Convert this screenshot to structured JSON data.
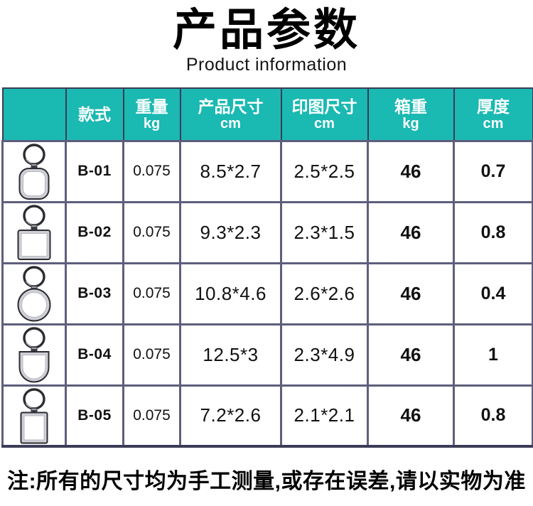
{
  "page": {
    "title": "产品参数",
    "subtitle": "Product information",
    "footnote": "注:所有的尺寸均为手工测量,或存在误差,请以实物为准"
  },
  "colors": {
    "header_bg": "#1ab9b2",
    "header_text": "#ffffff",
    "cell_border": "#5e5e7c",
    "dark_border": "#3c3c58"
  },
  "table": {
    "headers": {
      "image": "",
      "style": "款式",
      "weight": "重量",
      "weight_unit": "kg",
      "product_size": "产品尺寸",
      "product_size_unit": "cm",
      "print_size": "印图尺寸",
      "print_size_unit": "cm",
      "box_weight": "箱重",
      "box_weight_unit": "kg",
      "thickness": "厚度",
      "thickness_unit": "cm"
    },
    "rows": [
      {
        "image_shape": "rounded-rect",
        "image_label": "keychain-rounded-rectangle-pendant",
        "style": "B-01",
        "weight": "0.075",
        "product_size": "8.5*2.7",
        "print_size": "2.5*2.5",
        "box_weight": "46",
        "thickness": "0.7"
      },
      {
        "image_shape": "square",
        "image_label": "keychain-square-pendant",
        "style": "B-02",
        "weight": "0.075",
        "product_size": "9.3*2.3",
        "print_size": "2.3*1.5",
        "box_weight": "46",
        "thickness": "0.8"
      },
      {
        "image_shape": "circle",
        "image_label": "keychain-round-pendant",
        "style": "B-03",
        "weight": "0.075",
        "product_size": "10.8*4.6",
        "print_size": "2.6*2.6",
        "box_weight": "46",
        "thickness": "0.4"
      },
      {
        "image_shape": "shield",
        "image_label": "keychain-shield-pendant",
        "style": "B-04",
        "weight": "0.075",
        "product_size": "12.5*3",
        "print_size": "2.3*4.9",
        "box_weight": "46",
        "thickness": "1"
      },
      {
        "image_shape": "rect",
        "image_label": "keychain-rectangle-pendant",
        "style": "B-05",
        "weight": "0.075",
        "product_size": "7.2*2.6",
        "print_size": "2.1*2.1",
        "box_weight": "46",
        "thickness": "0.8"
      }
    ]
  }
}
